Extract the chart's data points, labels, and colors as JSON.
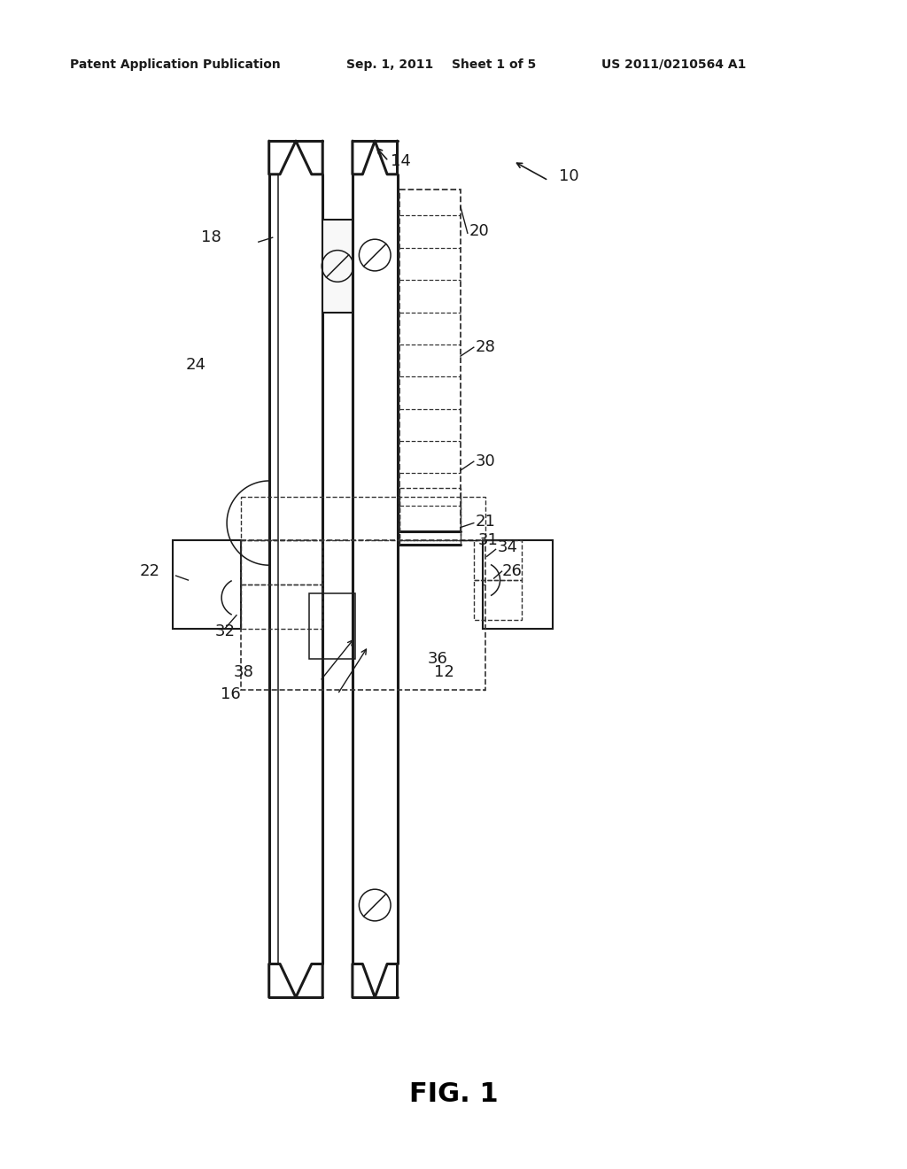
{
  "background_color": "#ffffff",
  "header_text": "Patent Application Publication",
  "header_date": "Sep. 1, 2011",
  "header_sheet": "Sheet 1 of 5",
  "header_patent": "US 2011/0210564 A1",
  "fig_label": "FIG. 1"
}
